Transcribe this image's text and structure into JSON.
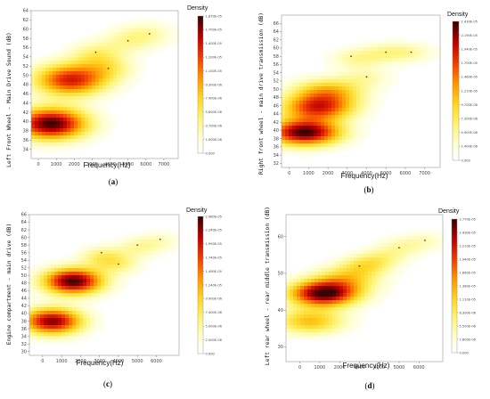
{
  "chart_data": [
    {
      "type": "heatmap",
      "panel_label": "a",
      "xlabel": "Frequency(Hz)",
      "ylabel": "Left Front Wheel - Main Drive Sound (dB)",
      "xlim": [
        -400,
        7800
      ],
      "ylim": [
        32,
        64
      ],
      "xticks": [
        "0",
        "1000",
        "2000",
        "3000",
        "4000",
        "5000",
        "6000",
        "7000"
      ],
      "xtick_values": [
        0,
        1000,
        2000,
        3000,
        4000,
        5000,
        6000,
        7000
      ],
      "yticks": [
        "34",
        "36",
        "38",
        "40",
        "42",
        "44",
        "46",
        "48",
        "50",
        "52",
        "54",
        "56",
        "58",
        "60",
        "62",
        "64"
      ],
      "ytick_values": [
        34,
        36,
        38,
        40,
        42,
        44,
        46,
        48,
        50,
        52,
        54,
        56,
        58,
        60,
        62,
        64
      ],
      "colorbar_label": "Density",
      "colorbar_ticks": [
        "1.870E-05",
        "1.700E-05",
        "1.400E-05",
        "1.200E-05",
        "1.100E-05",
        "9.300E-06",
        "7.400E-06",
        "5.600E-06",
        "3.700E-06",
        "1.900E-06",
        "0.000"
      ],
      "blobs": [
        {
          "x": 700,
          "y": 39.5,
          "weight": 1.0
        },
        {
          "x": 1800,
          "y": 49,
          "weight": 0.78
        },
        {
          "x": 3200,
          "y": 54.5,
          "weight": 0.22
        },
        {
          "x": 3900,
          "y": 51.5,
          "weight": 0.2
        },
        {
          "x": 5000,
          "y": 57.5,
          "weight": 0.16
        },
        {
          "x": 6200,
          "y": 59,
          "weight": 0.14
        }
      ],
      "points": [
        {
          "x": 3200,
          "y": 55
        },
        {
          "x": 3900,
          "y": 51.5
        },
        {
          "x": 5000,
          "y": 57.5
        },
        {
          "x": 6200,
          "y": 59
        }
      ]
    },
    {
      "type": "heatmap",
      "panel_label": "b",
      "xlabel": "Frequency(Hz)",
      "ylabel": "Right front wheel - main drive transmission (dB)",
      "xlim": [
        -400,
        7800
      ],
      "ylim": [
        31,
        68
      ],
      "xticks": [
        "0",
        "1000",
        "2000",
        "3000",
        "4000",
        "5000",
        "6000",
        "7000"
      ],
      "xtick_values": [
        0,
        1000,
        2000,
        3000,
        4000,
        5000,
        6000,
        7000
      ],
      "yticks": [
        "32",
        "34",
        "36",
        "38",
        "40",
        "42",
        "44",
        "46",
        "48",
        "50",
        "52",
        "54",
        "56",
        "58",
        "60",
        "62",
        "64",
        "66"
      ],
      "ytick_values": [
        32,
        34,
        36,
        38,
        40,
        42,
        44,
        46,
        48,
        50,
        52,
        54,
        56,
        58,
        60,
        62,
        64,
        66
      ],
      "colorbar_label": "Density",
      "colorbar_ticks": [
        "2.430E-05",
        "2.190E-05",
        "1.940E-05",
        "1.700E-05",
        "1.460E-05",
        "1.210E-05",
        "9.700E-06",
        "7.300E-06",
        "4.900E-06",
        "2.400E-06",
        "0.000"
      ],
      "blobs": [
        {
          "x": 800,
          "y": 39.5,
          "weight": 1.0
        },
        {
          "x": 1500,
          "y": 45.5,
          "weight": 0.72
        },
        {
          "x": 2000,
          "y": 49.5,
          "weight": 0.45
        },
        {
          "x": 3500,
          "y": 57.5,
          "weight": 0.18
        },
        {
          "x": 4000,
          "y": 53,
          "weight": 0.14
        },
        {
          "x": 5000,
          "y": 59,
          "weight": 0.15
        },
        {
          "x": 6300,
          "y": 59,
          "weight": 0.14
        }
      ],
      "points": [
        {
          "x": 3200,
          "y": 58
        },
        {
          "x": 4000,
          "y": 53
        },
        {
          "x": 5000,
          "y": 59
        },
        {
          "x": 6300,
          "y": 59
        }
      ]
    },
    {
      "type": "heatmap",
      "panel_label": "c",
      "xlabel": "Frequency(Hz)",
      "ylabel": "Engine compartment - main drive (dB)",
      "xlim": [
        -700,
        7200
      ],
      "ylim": [
        29,
        66
      ],
      "xticks": [
        "0",
        "1000",
        "2000",
        "3000",
        "4000",
        "5000",
        "6000"
      ],
      "xtick_values": [
        0,
        1000,
        2000,
        3000,
        4000,
        5000,
        6000
      ],
      "yticks": [
        "30",
        "32",
        "34",
        "36",
        "38",
        "40",
        "42",
        "44",
        "46",
        "48",
        "50",
        "52",
        "54",
        "56",
        "58",
        "60",
        "62",
        "64",
        "66"
      ],
      "ytick_values": [
        30,
        32,
        34,
        36,
        38,
        40,
        42,
        44,
        46,
        48,
        50,
        52,
        54,
        56,
        58,
        60,
        62,
        64,
        66
      ],
      "colorbar_label": "Density",
      "colorbar_ticks": [
        "2.480E-05",
        "2.240E-05",
        "1.990E-05",
        "1.740E-05",
        "1.490E-05",
        "1.240E-05",
        "9.900E-06",
        "7.400E-06",
        "5.000E-06",
        "2.500E-06",
        "0.000"
      ],
      "blobs": [
        {
          "x": 500,
          "y": 38,
          "weight": 0.92
        },
        {
          "x": 1600,
          "y": 48.5,
          "weight": 1.0
        },
        {
          "x": 3100,
          "y": 55,
          "weight": 0.24
        },
        {
          "x": 4000,
          "y": 53,
          "weight": 0.2
        },
        {
          "x": 5000,
          "y": 57.5,
          "weight": 0.16
        },
        {
          "x": 6200,
          "y": 59,
          "weight": 0.12
        }
      ],
      "points": [
        {
          "x": 3100,
          "y": 56
        },
        {
          "x": 4000,
          "y": 53
        },
        {
          "x": 5000,
          "y": 58
        },
        {
          "x": 6200,
          "y": 59.5
        }
      ]
    },
    {
      "type": "heatmap",
      "panel_label": "d",
      "xlabel": "Frequency(Hz)",
      "ylabel": "Left rear wheel - rear middle transmission (dB)",
      "xlim": [
        -700,
        7200
      ],
      "ylim": [
        26,
        66
      ],
      "xticks": [
        "0",
        "1000",
        "2000",
        "3000",
        "4000",
        "5000",
        "6000"
      ],
      "xtick_values": [
        0,
        1000,
        2000,
        3000,
        4000,
        5000,
        6000
      ],
      "yticks": [
        "30",
        "40",
        "50",
        "60"
      ],
      "ytick_values": [
        30,
        40,
        50,
        60
      ],
      "colorbar_label": "Density",
      "colorbar_ticks": [
        "2.770E-05",
        "2.490E-05",
        "2.210E-05",
        "1.940E-05",
        "1.660E-05",
        "1.380E-05",
        "1.110E-05",
        "8.300E-06",
        "5.500E-06",
        "2.800E-06",
        "0.000"
      ],
      "blobs": [
        {
          "x": 1200,
          "y": 44.5,
          "weight": 1.0
        },
        {
          "x": 500,
          "y": 37,
          "weight": 0.45
        },
        {
          "x": 2300,
          "y": 48.5,
          "weight": 0.35
        },
        {
          "x": 3200,
          "y": 52,
          "weight": 0.24
        },
        {
          "x": 4000,
          "y": 54,
          "weight": 0.18
        },
        {
          "x": 5000,
          "y": 57,
          "weight": 0.15
        },
        {
          "x": 6300,
          "y": 59,
          "weight": 0.12
        }
      ],
      "points": [
        {
          "x": 3000,
          "y": 52
        },
        {
          "x": 5000,
          "y": 57
        },
        {
          "x": 6300,
          "y": 59
        }
      ]
    }
  ]
}
